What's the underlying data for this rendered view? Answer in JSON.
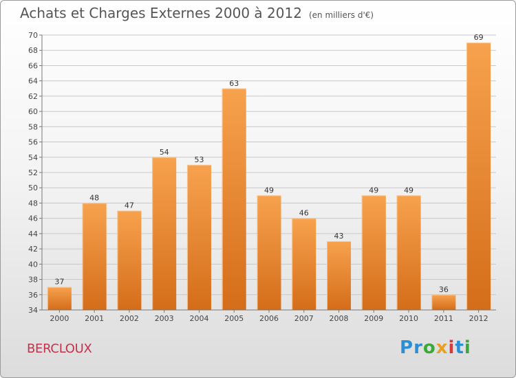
{
  "header": {
    "title": "Achats et Charges Externes 2000 à 2012",
    "subtitle": "(en milliers d'€)"
  },
  "place": "BERCLOUX",
  "logo": {
    "text": "Proxiti",
    "letters": [
      {
        "ch": "P",
        "color": "#2b8fd6"
      },
      {
        "ch": "r",
        "color": "#2b8fd6"
      },
      {
        "ch": "o",
        "color": "#3aa83a"
      },
      {
        "ch": "x",
        "color": "#e8a020"
      },
      {
        "ch": "i",
        "color": "#d63a3a"
      },
      {
        "ch": "t",
        "color": "#2b8fd6"
      },
      {
        "ch": "i",
        "color": "#3aa83a"
      }
    ]
  },
  "colors": {
    "bar_top": "#f7a24e",
    "bar_bottom": "#d46d1a",
    "grid": "#c8c8c8",
    "axis": "#777777"
  },
  "chart_data": {
    "type": "bar",
    "categories": [
      "2000",
      "2001",
      "2002",
      "2003",
      "2004",
      "2005",
      "2006",
      "2007",
      "2008",
      "2009",
      "2010",
      "2011",
      "2012"
    ],
    "values": [
      37,
      48,
      47,
      54,
      53,
      63,
      49,
      46,
      43,
      49,
      49,
      36,
      69
    ],
    "ylim": [
      34,
      70
    ],
    "ytick_step": 2,
    "grid": true,
    "data_labels": true
  }
}
